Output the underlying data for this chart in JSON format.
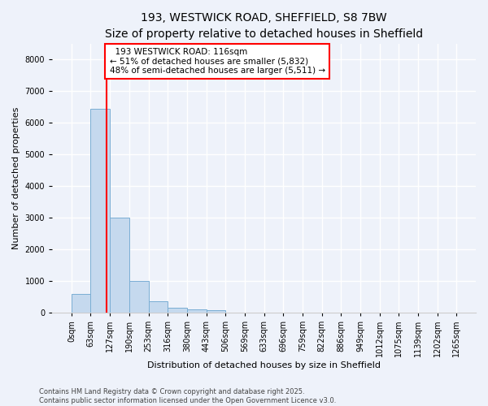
{
  "title_line1": "193, WESTWICK ROAD, SHEFFIELD, S8 7BW",
  "title_line2": "Size of property relative to detached houses in Sheffield",
  "xlabel": "Distribution of detached houses by size in Sheffield",
  "ylabel": "Number of detached properties",
  "bar_color": "#c5d9ee",
  "bar_edge_color": "#7aaed4",
  "vline_color": "red",
  "vline_x": 116,
  "annotation_title": "193 WESTWICK ROAD: 116sqm",
  "annotation_line2": "← 51% of detached houses are smaller (5,832)",
  "annotation_line3": "48% of semi-detached houses are larger (5,511) →",
  "bin_edges": [
    0,
    63,
    127,
    190,
    253,
    316,
    380,
    443,
    506,
    569,
    633,
    696,
    759,
    822,
    886,
    949,
    1012,
    1075,
    1139,
    1202,
    1265
  ],
  "bar_heights": [
    580,
    6450,
    3000,
    1000,
    370,
    150,
    100,
    75,
    0,
    0,
    0,
    0,
    0,
    0,
    0,
    0,
    0,
    0,
    0,
    0
  ],
  "ylim": [
    0,
    8500
  ],
  "yticks": [
    0,
    1000,
    2000,
    3000,
    4000,
    5000,
    6000,
    7000,
    8000
  ],
  "footer_line1": "Contains HM Land Registry data © Crown copyright and database right 2025.",
  "footer_line2": "Contains public sector information licensed under the Open Government Licence v3.0.",
  "background_color": "#eef2fa",
  "plot_background": "#eef2fa",
  "grid_color": "#ffffff",
  "title_fontsize": 10,
  "subtitle_fontsize": 9,
  "axis_label_fontsize": 8,
  "tick_fontsize": 7,
  "footer_fontsize": 6
}
